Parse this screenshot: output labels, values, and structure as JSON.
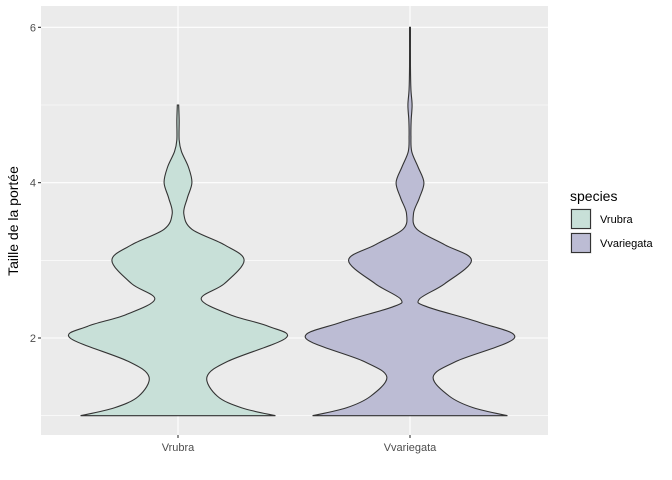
{
  "chart_data": {
    "type": "violin",
    "title": "",
    "xlabel": "",
    "ylabel": "Taille de la portée",
    "ylim": [
      0.85,
      6.0
    ],
    "y_ticks": [
      2,
      4,
      6
    ],
    "categories": [
      "Vrubra",
      "Vvariegata"
    ],
    "legend": {
      "title": "species",
      "position": "right",
      "entries": [
        "Vrubra",
        "Vvariegata"
      ]
    },
    "colors": {
      "panel": "#ebebeb",
      "grid": "#ffffff",
      "outline": "#333333",
      "Vrubra": "#c8e0d8",
      "Vvariegata": "#bcbcd4"
    },
    "series": [
      {
        "name": "Vrubra",
        "profile": [
          {
            "y": 1.0,
            "w": 0.84
          },
          {
            "y": 1.1,
            "w": 0.55
          },
          {
            "y": 1.25,
            "w": 0.34
          },
          {
            "y": 1.5,
            "w": 0.25
          },
          {
            "y": 1.7,
            "w": 0.43
          },
          {
            "y": 2.0,
            "w": 0.93
          },
          {
            "y": 2.15,
            "w": 0.78
          },
          {
            "y": 2.3,
            "w": 0.45
          },
          {
            "y": 2.5,
            "w": 0.2
          },
          {
            "y": 2.7,
            "w": 0.4
          },
          {
            "y": 3.0,
            "w": 0.57
          },
          {
            "y": 3.2,
            "w": 0.4
          },
          {
            "y": 3.4,
            "w": 0.12
          },
          {
            "y": 3.6,
            "w": 0.05
          },
          {
            "y": 3.8,
            "w": 0.08
          },
          {
            "y": 4.0,
            "w": 0.12
          },
          {
            "y": 4.2,
            "w": 0.09
          },
          {
            "y": 4.4,
            "w": 0.03
          },
          {
            "y": 4.55,
            "w": 0.01
          },
          {
            "y": 4.8,
            "w": 0.01
          },
          {
            "y": 5.0,
            "w": 0.006
          }
        ]
      },
      {
        "name": "Vvariegata",
        "profile": [
          {
            "y": 1.0,
            "w": 0.84
          },
          {
            "y": 1.1,
            "w": 0.55
          },
          {
            "y": 1.25,
            "w": 0.34
          },
          {
            "y": 1.5,
            "w": 0.2
          },
          {
            "y": 1.7,
            "w": 0.4
          },
          {
            "y": 2.0,
            "w": 0.9
          },
          {
            "y": 2.2,
            "w": 0.6
          },
          {
            "y": 2.4,
            "w": 0.15
          },
          {
            "y": 2.5,
            "w": 0.08
          },
          {
            "y": 2.7,
            "w": 0.3
          },
          {
            "y": 3.0,
            "w": 0.53
          },
          {
            "y": 3.2,
            "w": 0.3
          },
          {
            "y": 3.4,
            "w": 0.06
          },
          {
            "y": 3.6,
            "w": 0.03
          },
          {
            "y": 3.8,
            "w": 0.08
          },
          {
            "y": 4.0,
            "w": 0.12
          },
          {
            "y": 4.2,
            "w": 0.07
          },
          {
            "y": 4.4,
            "w": 0.015
          },
          {
            "y": 4.6,
            "w": 0.008
          },
          {
            "y": 4.8,
            "w": 0.01
          },
          {
            "y": 5.0,
            "w": 0.018
          },
          {
            "y": 5.2,
            "w": 0.008
          },
          {
            "y": 5.5,
            "w": 0.004
          },
          {
            "y": 6.0,
            "w": 0.004
          }
        ]
      }
    ]
  }
}
